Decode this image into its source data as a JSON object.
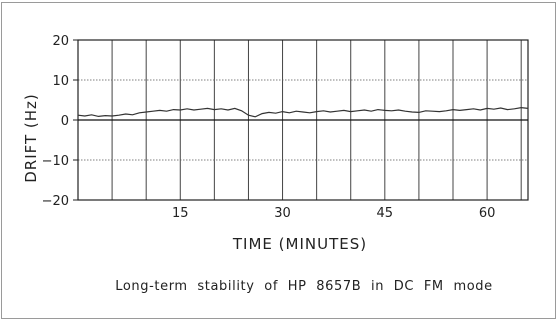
{
  "chart_data": {
    "type": "line",
    "xlabel": "TIME  (MINUTES)",
    "ylabel": "DRIFT  (Hz)",
    "caption": "Long-term stability of HP 8657B in DC FM mode",
    "xlim": [
      0,
      66
    ],
    "ylim": [
      -20,
      20
    ],
    "x_ticks": [
      15,
      30,
      45,
      60
    ],
    "y_ticks": [
      20,
      10,
      0,
      -10,
      -20
    ],
    "y_tick_labels": [
      "20",
      "10",
      "0",
      "−10",
      "−20"
    ],
    "grid": true,
    "series": [
      {
        "x": [
          0,
          1,
          2,
          3,
          4,
          5,
          6,
          7,
          8,
          9,
          10,
          11,
          12,
          13,
          14,
          15,
          16,
          17,
          18,
          19,
          20,
          21,
          22,
          23,
          24,
          25,
          26,
          27,
          28,
          29,
          30,
          31,
          32,
          33,
          34,
          35,
          36,
          37,
          38,
          39,
          40,
          41,
          42,
          43,
          44,
          45,
          46,
          47,
          48,
          49,
          50,
          51,
          52,
          53,
          54,
          55,
          56,
          57,
          58,
          59,
          60,
          61,
          62,
          63,
          64,
          65,
          66
        ],
        "values": [
          1.2,
          1.0,
          1.3,
          0.9,
          1.1,
          1.0,
          1.2,
          1.5,
          1.3,
          1.8,
          2.0,
          2.2,
          2.4,
          2.2,
          2.6,
          2.5,
          2.8,
          2.5,
          2.7,
          2.9,
          2.6,
          2.8,
          2.5,
          2.9,
          2.3,
          1.2,
          0.8,
          1.6,
          1.9,
          1.7,
          2.1,
          1.8,
          2.2,
          2.0,
          1.8,
          2.1,
          2.3,
          2.0,
          2.2,
          2.4,
          2.1,
          2.3,
          2.5,
          2.2,
          2.6,
          2.4,
          2.3,
          2.5,
          2.2,
          2.0,
          1.9,
          2.3,
          2.2,
          2.1,
          2.3,
          2.6,
          2.4,
          2.6,
          2.8,
          2.5,
          2.9,
          2.7,
          3.0,
          2.6,
          2.8,
          3.1,
          2.9
        ]
      }
    ]
  }
}
